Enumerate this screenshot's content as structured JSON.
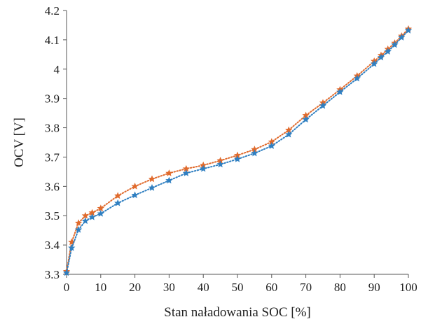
{
  "chart_data": {
    "type": "line",
    "title": "",
    "xlabel": "Stan naładowania SOC [%]",
    "ylabel": "OCV [V]",
    "xlim": [
      0,
      100
    ],
    "ylim": [
      3.3,
      4.2
    ],
    "x_ticks": [
      0,
      10,
      20,
      30,
      40,
      50,
      60,
      70,
      80,
      90,
      100
    ],
    "x_tick_labels": [
      "0",
      "10",
      "20",
      "30",
      "40",
      "50",
      "60",
      "70",
      "80",
      "90",
      "100"
    ],
    "y_ticks": [
      3.3,
      3.4,
      3.5,
      3.6,
      3.7,
      3.8,
      3.9,
      4.0,
      4.1,
      4.2
    ],
    "y_tick_labels": [
      "3.3",
      "3.4",
      "3.5",
      "3.6",
      "3.7",
      "3.8",
      "3.9",
      "4",
      "4.1",
      "4.2"
    ],
    "grid": false,
    "legend": "none",
    "series": [
      {
        "color": "#e06a2c",
        "line_style": "dotted",
        "marker": "star",
        "points": [
          [
            0,
            3.31
          ],
          [
            1.5,
            3.41
          ],
          [
            3.5,
            3.475
          ],
          [
            5.5,
            3.5
          ],
          [
            7.5,
            3.51
          ],
          [
            10,
            3.525
          ],
          [
            15,
            3.568
          ],
          [
            20,
            3.6
          ],
          [
            25,
            3.625
          ],
          [
            30,
            3.645
          ],
          [
            35,
            3.66
          ],
          [
            40,
            3.672
          ],
          [
            45,
            3.688
          ],
          [
            50,
            3.706
          ],
          [
            55,
            3.726
          ],
          [
            60,
            3.752
          ],
          [
            65,
            3.792
          ],
          [
            70,
            3.842
          ],
          [
            75,
            3.885
          ],
          [
            80,
            3.93
          ],
          [
            85,
            3.977
          ],
          [
            90,
            4.027
          ],
          [
            92,
            4.047
          ],
          [
            94,
            4.068
          ],
          [
            96,
            4.089
          ],
          [
            98,
            4.113
          ],
          [
            100,
            4.137
          ]
        ]
      },
      {
        "color": "#2f7fc1",
        "line_style": "dotted",
        "marker": "star",
        "points": [
          [
            0,
            3.305
          ],
          [
            1.5,
            3.39
          ],
          [
            3.5,
            3.452
          ],
          [
            5.5,
            3.482
          ],
          [
            7.5,
            3.495
          ],
          [
            10,
            3.507
          ],
          [
            15,
            3.543
          ],
          [
            20,
            3.57
          ],
          [
            25,
            3.595
          ],
          [
            30,
            3.62
          ],
          [
            35,
            3.645
          ],
          [
            40,
            3.66
          ],
          [
            45,
            3.675
          ],
          [
            50,
            3.693
          ],
          [
            55,
            3.713
          ],
          [
            60,
            3.738
          ],
          [
            65,
            3.777
          ],
          [
            70,
            3.828
          ],
          [
            75,
            3.875
          ],
          [
            80,
            3.922
          ],
          [
            85,
            3.968
          ],
          [
            90,
            4.018
          ],
          [
            92,
            4.04
          ],
          [
            94,
            4.06
          ],
          [
            96,
            4.083
          ],
          [
            98,
            4.108
          ],
          [
            100,
            4.132
          ]
        ]
      }
    ]
  }
}
